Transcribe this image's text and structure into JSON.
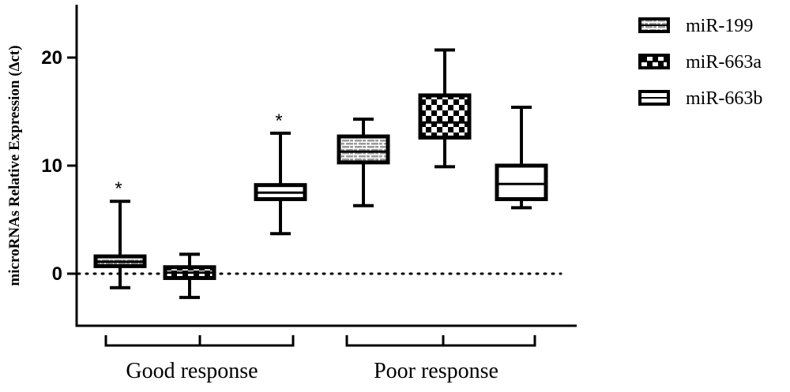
{
  "chart_data": {
    "type": "box",
    "ylabel": "microRNAs Relative Expression (Δct)",
    "ylim": [
      -5,
      25
    ],
    "yticks": [
      0,
      10,
      20
    ],
    "reference_line": 0,
    "groups": [
      {
        "name": "Good response",
        "series_indices": [
          0,
          1,
          2
        ]
      },
      {
        "name": "Poor response",
        "series_indices": [
          0,
          1,
          2
        ]
      }
    ],
    "series": [
      {
        "name": "miR-199",
        "pattern": "brick"
      },
      {
        "name": "miR-663a",
        "pattern": "checker"
      },
      {
        "name": "miR-663b",
        "pattern": "plain"
      }
    ],
    "boxes": [
      {
        "group": "Good response",
        "series": "miR-199",
        "min": -1.3,
        "q1": 0.7,
        "median": 1.1,
        "q3": 1.6,
        "max": 6.7,
        "annotation": "*"
      },
      {
        "group": "Good response",
        "series": "miR-663a",
        "min": -2.2,
        "q1": -0.4,
        "median": 0.1,
        "q3": 0.6,
        "max": 1.8,
        "annotation": ""
      },
      {
        "group": "Good response",
        "series": "miR-663b",
        "min": 3.7,
        "q1": 6.9,
        "median": 7.5,
        "q3": 8.2,
        "max": 13.0,
        "annotation": "*"
      },
      {
        "group": "Poor response",
        "series": "miR-199",
        "min": 6.3,
        "q1": 10.3,
        "median": 11.3,
        "q3": 12.7,
        "max": 14.3,
        "annotation": ""
      },
      {
        "group": "Poor response",
        "series": "miR-663a",
        "min": 9.9,
        "q1": 12.6,
        "median": 14.0,
        "q3": 16.5,
        "max": 20.7,
        "annotation": ""
      },
      {
        "group": "Poor response",
        "series": "miR-663b",
        "min": 6.1,
        "q1": 6.9,
        "median": 8.3,
        "q3": 10.0,
        "max": 15.4,
        "annotation": ""
      }
    ],
    "legend_position": "top-right"
  }
}
